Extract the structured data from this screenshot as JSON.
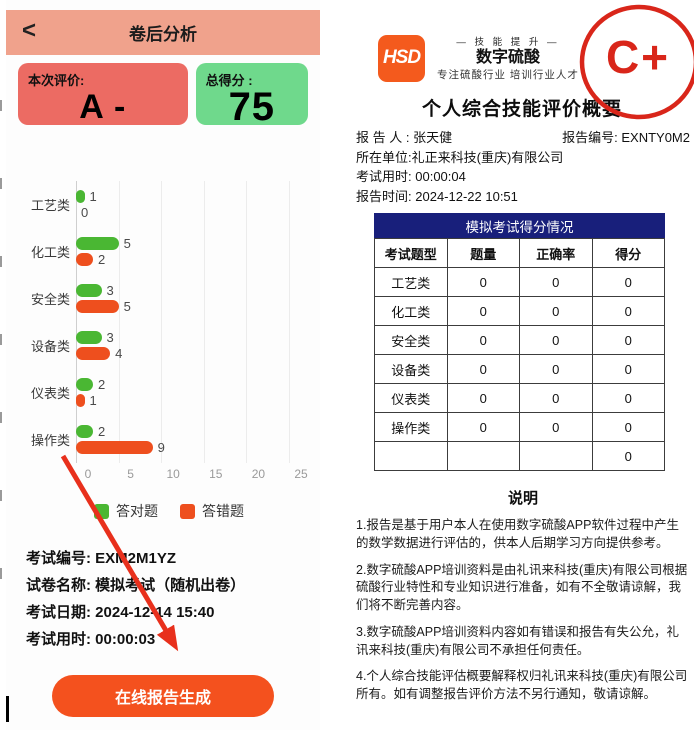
{
  "chart_data": {
    "type": "bar",
    "orientation": "horizontal",
    "title": "",
    "xlabel": "",
    "ylabel": "",
    "categories": [
      "工艺类",
      "化工类",
      "安全类",
      "设备类",
      "仪表类",
      "操作类"
    ],
    "series": [
      {
        "name": "答对题",
        "color": "#4ab733",
        "values": [
          1,
          5,
          3,
          3,
          2,
          2
        ]
      },
      {
        "name": "答错题",
        "color": "#ee4f1e",
        "values": [
          0,
          2,
          5,
          4,
          1,
          9
        ]
      }
    ],
    "x_ticks": [
      0,
      5,
      10,
      15,
      20,
      25
    ],
    "xlim": [
      0,
      25
    ],
    "grid": true,
    "legend_position": "bottom"
  },
  "left_app": {
    "header": {
      "back_icon": "‹",
      "title": "卷后分析"
    },
    "evaluation_card": {
      "label": "本次评价:",
      "value": "A -"
    },
    "score_card": {
      "label": "总得分 :",
      "value": "75"
    },
    "exam_info": [
      {
        "label": "考试编号:",
        "value": "EXM2M1YZ"
      },
      {
        "label": "试卷名称:",
        "value": "模拟考试（随机出卷）"
      },
      {
        "label": "考试日期:",
        "value": "2024-12-14 15:40"
      },
      {
        "label": "考试用时:",
        "value": "00:00:03"
      }
    ],
    "generate_button_label": "在线报告生成"
  },
  "report": {
    "logo_text": "HSD",
    "tagline_top": "— 技 能 提 升 —",
    "brand": "数字硫酸",
    "tagline_bottom": "专注硫酸行业 培训行业人才",
    "stamp_grade": "C+",
    "title": "个人综合技能评价概要",
    "info": {
      "reporter_label": "报 告 人 :",
      "reporter": "张天健",
      "report_no_label": "报告编号:",
      "report_no": "EXNTY0M2",
      "unit_label": "所在单位:",
      "unit": "礼正来科技(重庆)有限公司",
      "duration_label": "考试用时:",
      "duration": "00:00:04",
      "time_label": "报告时间:",
      "time": "2024-12-22 10:51"
    },
    "table": {
      "caption": "模拟考试得分情况",
      "headers": [
        "考试题型",
        "题量",
        "正确率",
        "得分"
      ],
      "rows": [
        [
          "工艺类",
          "0",
          "0",
          "0"
        ],
        [
          "化工类",
          "0",
          "0",
          "0"
        ],
        [
          "安全类",
          "0",
          "0",
          "0"
        ],
        [
          "设备类",
          "0",
          "0",
          "0"
        ],
        [
          "仪表类",
          "0",
          "0",
          "0"
        ],
        [
          "操作类",
          "0",
          "0",
          "0"
        ],
        [
          "",
          "",
          "",
          "0"
        ]
      ]
    },
    "notes": {
      "title": "说明",
      "paragraphs": [
        "1.报告是基于用户本人在使用数字硫酸APP软件过程中产生的数学数据进行评估的，供本人后期学习方向提供参考。",
        "2.数字硫酸APP培训资料是由礼讯来科技(重庆)有限公司根据硫酸行业特性和专业知识进行准备，如有不全敬请谅解，我们将不断完善内容。",
        "3.数字硫酸APP培训资料内容如有错误和报告有失公允，礼讯来科技(重庆)有限公司不承担任何责任。",
        "4.个人综合技能评估概要解释权归礼讯来科技(重庆)有限公司所有。如有调整报告评价方法不另行通知，敬请谅解。"
      ]
    }
  },
  "colors": {
    "header_bg": "#f0a28c",
    "eval_card_bg": "#ec6b63",
    "score_card_bg": "#6fd98c",
    "correct_green": "#4ab733",
    "wrong_orange": "#ee4f1e",
    "button_bg": "#f4511e",
    "table_band_navy": "#181f7b",
    "stamp_red": "#d9261a",
    "arrow_red": "#e8301c",
    "logo_orange": "#f45a1d"
  }
}
